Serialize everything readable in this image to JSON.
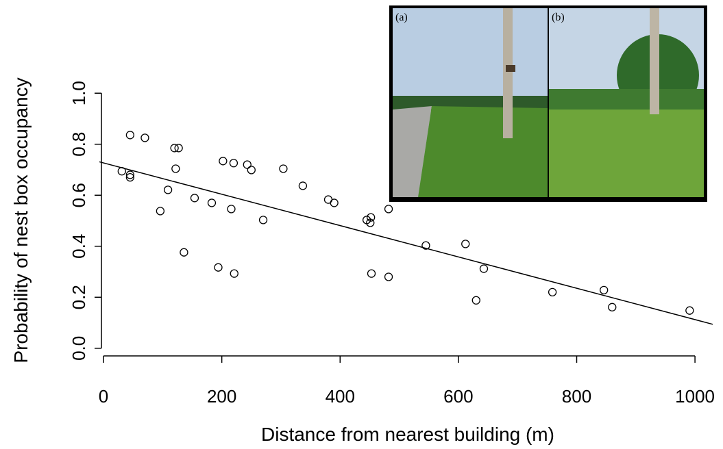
{
  "chart_data": {
    "type": "scatter",
    "xlabel": "Distance from nearest building (m)",
    "ylabel": "Probability of nest box occupancy",
    "x": [
      31,
      45,
      45,
      45,
      70,
      96,
      109,
      120,
      127,
      122,
      136,
      154,
      183,
      194,
      202,
      216,
      220,
      221,
      243,
      250,
      270,
      304,
      337,
      380,
      390,
      445,
      452,
      451,
      453,
      482,
      482,
      545,
      612,
      630,
      643,
      759,
      846,
      860,
      991
    ],
    "y": [
      0.694,
      0.836,
      0.68,
      0.67,
      0.825,
      0.538,
      0.621,
      0.785,
      0.785,
      0.704,
      0.376,
      0.589,
      0.57,
      0.317,
      0.734,
      0.546,
      0.726,
      0.293,
      0.72,
      0.699,
      0.503,
      0.704,
      0.637,
      0.583,
      0.57,
      0.503,
      0.513,
      0.492,
      0.293,
      0.546,
      0.28,
      0.403,
      0.409,
      0.188,
      0.312,
      0.22,
      0.228,
      0.161,
      0.148
    ],
    "fit": {
      "x": [
        -7,
        1030
      ],
      "y": [
        0.731,
        0.094
      ]
    },
    "xlim": [
      -7,
      1030
    ],
    "ylim": [
      -0.03,
      1.03
    ],
    "xticks": [
      0,
      200,
      400,
      600,
      800,
      1000
    ],
    "yticks": [
      {
        "value": 0,
        "label": "0.0"
      },
      0.2,
      0.4,
      0.6,
      0.8,
      {
        "value": 1,
        "label": "1.0"
      }
    ],
    "color": "#000000"
  },
  "insets": [
    "(a)",
    "(b)"
  ]
}
